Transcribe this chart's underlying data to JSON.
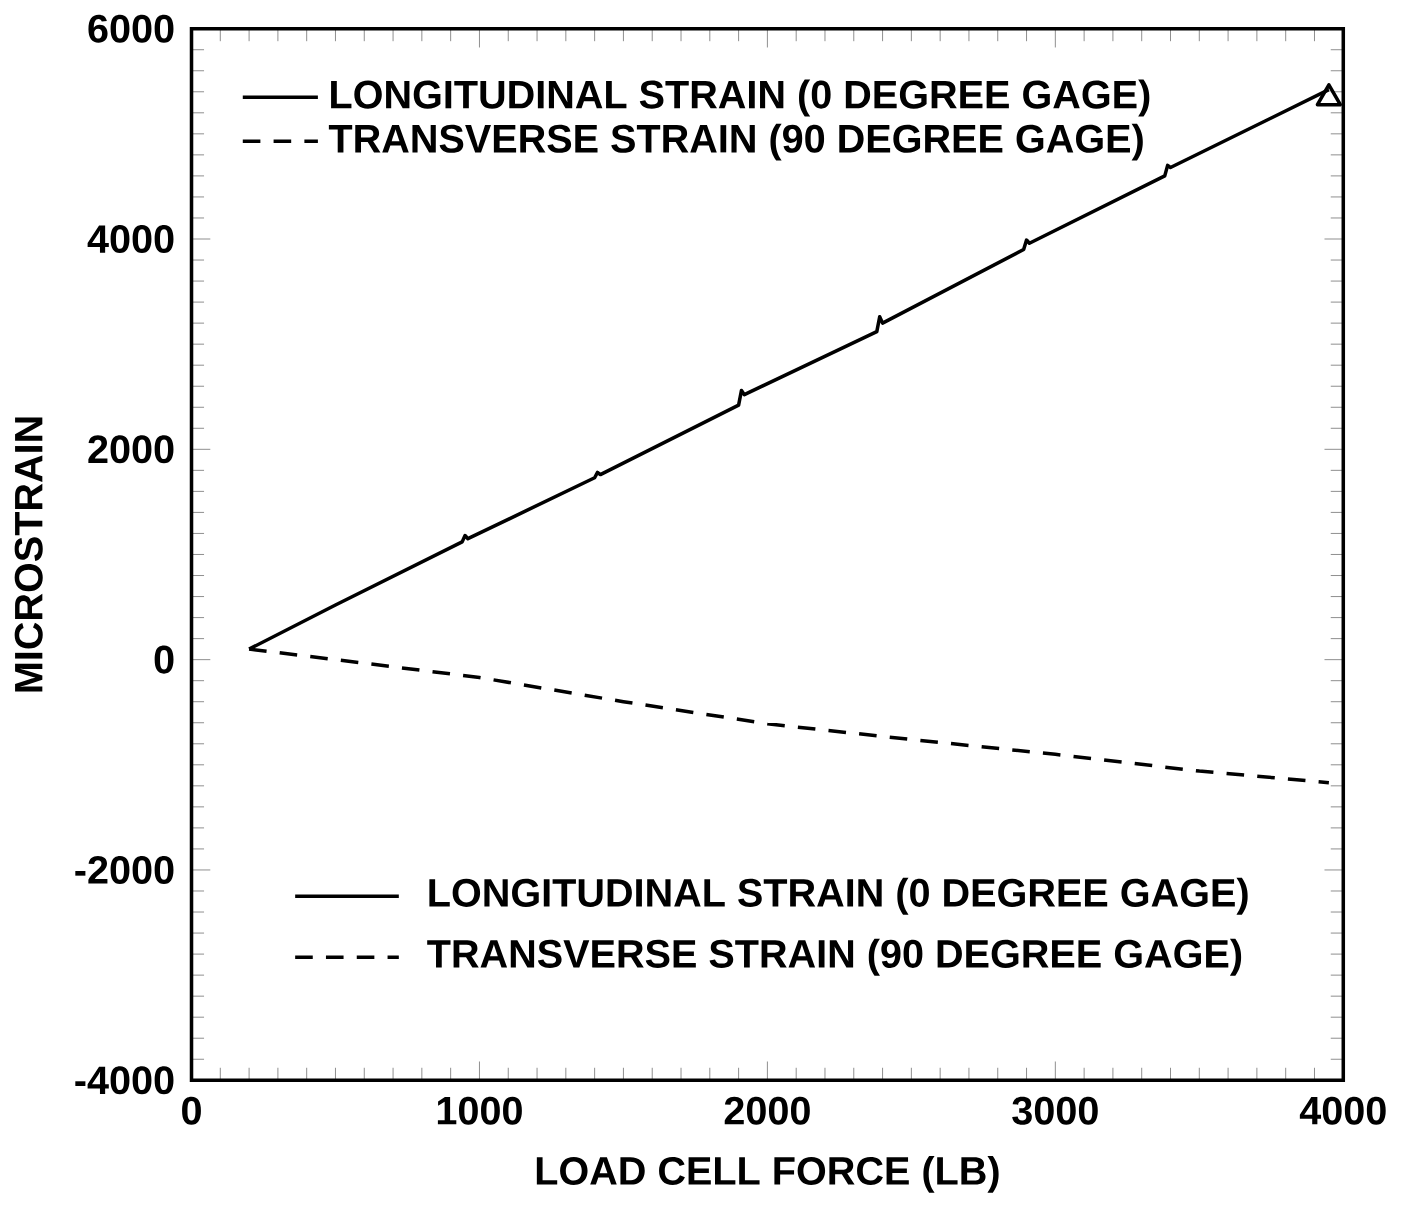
{
  "chart_data": {
    "type": "line",
    "xlabel": "LOAD CELL FORCE (LB)",
    "ylabel": "MICROSTRAIN",
    "xlim": [
      0,
      4000
    ],
    "xticks": [
      0,
      1000,
      2000,
      3000,
      4000
    ],
    "ylim": [
      -4000,
      6000
    ],
    "yticks": [
      -4000,
      -2000,
      0,
      2000,
      4000,
      6000
    ],
    "legend": "top left",
    "grid": false,
    "series": [
      {
        "name": "LONGITUDINAL STRAIN (0 DEGREE GAGE)",
        "color": "#000000",
        "line_style": "solid",
        "x": [
          200,
          500,
          940,
          950,
          960,
          1400,
          1410,
          1420,
          1900,
          1910,
          1920,
          2380,
          2390,
          2400,
          2890,
          2900,
          2910,
          3380,
          3390,
          3400,
          3950
        ],
        "values": [
          100,
          520,
          1120,
          1180,
          1150,
          1730,
          1780,
          1760,
          2420,
          2560,
          2520,
          3120,
          3260,
          3200,
          3900,
          3990,
          3960,
          4600,
          4700,
          4680,
          5420
        ]
      },
      {
        "name": "TRANSVERSE STRAIN (90 DEGREE GAGE)",
        "color": "#000000",
        "line_style": "dashed",
        "x": [
          200,
          500,
          1000,
          1500,
          2000,
          2500,
          3000,
          3500,
          3950
        ],
        "values": [
          100,
          0,
          -170,
          -400,
          -610,
          -760,
          -900,
          -1060,
          -1170
        ]
      },
      {
        "type": "scatter",
        "marker": "triangle",
        "color": "#000000",
        "x": [
          3950
        ],
        "values": [
          5340
        ]
      }
    ],
    "annotations": [
      "LONGITUDINAL STRAIN (0 DEGREE GAGE)",
      "TRANSVERSE STRAIN (90 DEGREE GAGE)"
    ]
  }
}
